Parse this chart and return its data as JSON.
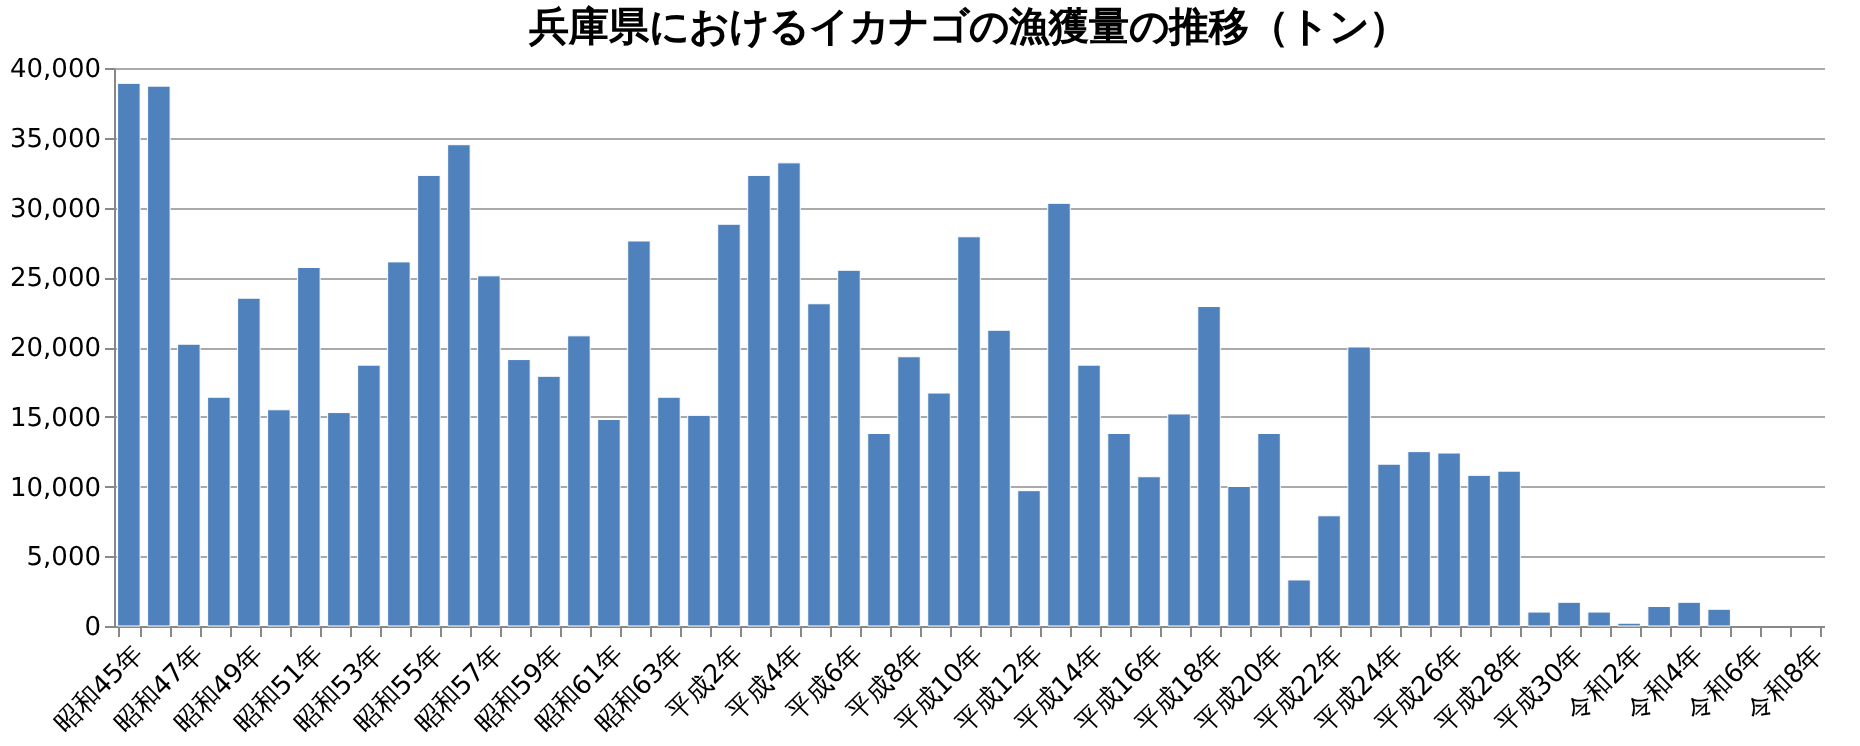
{
  "chart_data": {
    "type": "bar",
    "title": "兵庫県におけるイカナゴの漁獲量の推移（トン）",
    "categories": [
      "昭和45年",
      null,
      "昭和47年",
      null,
      "昭和49年",
      null,
      "昭和51年",
      null,
      "昭和53年",
      null,
      "昭和55年",
      null,
      "昭和57年",
      null,
      "昭和59年",
      null,
      "昭和61年",
      null,
      "昭和63年",
      null,
      "平成2年",
      null,
      "平成4年",
      null,
      "平成6年",
      null,
      "平成8年",
      null,
      "平成10年",
      null,
      "平成12年",
      null,
      "平成14年",
      null,
      "平成16年",
      null,
      "平成18年",
      null,
      "平成20年",
      null,
      "平成22年",
      null,
      "平成24年",
      null,
      "平成26年",
      null,
      "平成28年",
      null,
      "平成30年",
      null,
      "令和2年",
      null,
      "令和4年",
      null,
      "令和6年",
      null,
      "令和8年"
    ],
    "values": [
      38900,
      38700,
      20200,
      16400,
      23500,
      15500,
      25700,
      15300,
      18700,
      26100,
      32300,
      34500,
      25100,
      19100,
      17900,
      20800,
      14800,
      27600,
      16400,
      15100,
      28800,
      32300,
      33200,
      23100,
      25500,
      13800,
      19300,
      16700,
      27900,
      21200,
      9700,
      30300,
      18700,
      13800,
      10700,
      15200,
      22900,
      10000,
      13800,
      3300,
      7900,
      20000,
      11600,
      12500,
      12400,
      10800,
      11100,
      1000,
      1700,
      1000,
      200,
      1400,
      1700,
      1200,
      null,
      null,
      null
    ],
    "color": "#4f81bd",
    "ylim": [
      0,
      40000
    ],
    "yticks": [
      0,
      {
        "value": 5000,
        "label": "5,000"
      },
      {
        "value": 10000,
        "label": "10,000"
      },
      {
        "value": 15000,
        "label": "15,000"
      },
      {
        "value": 20000,
        "label": "20,000"
      },
      {
        "value": 25000,
        "label": "25,000"
      },
      {
        "value": 30000,
        "label": "30,000"
      },
      {
        "value": 35000,
        "label": "35,000"
      },
      {
        "value": 40000,
        "label": "40,000"
      }
    ],
    "grid": "y"
  }
}
